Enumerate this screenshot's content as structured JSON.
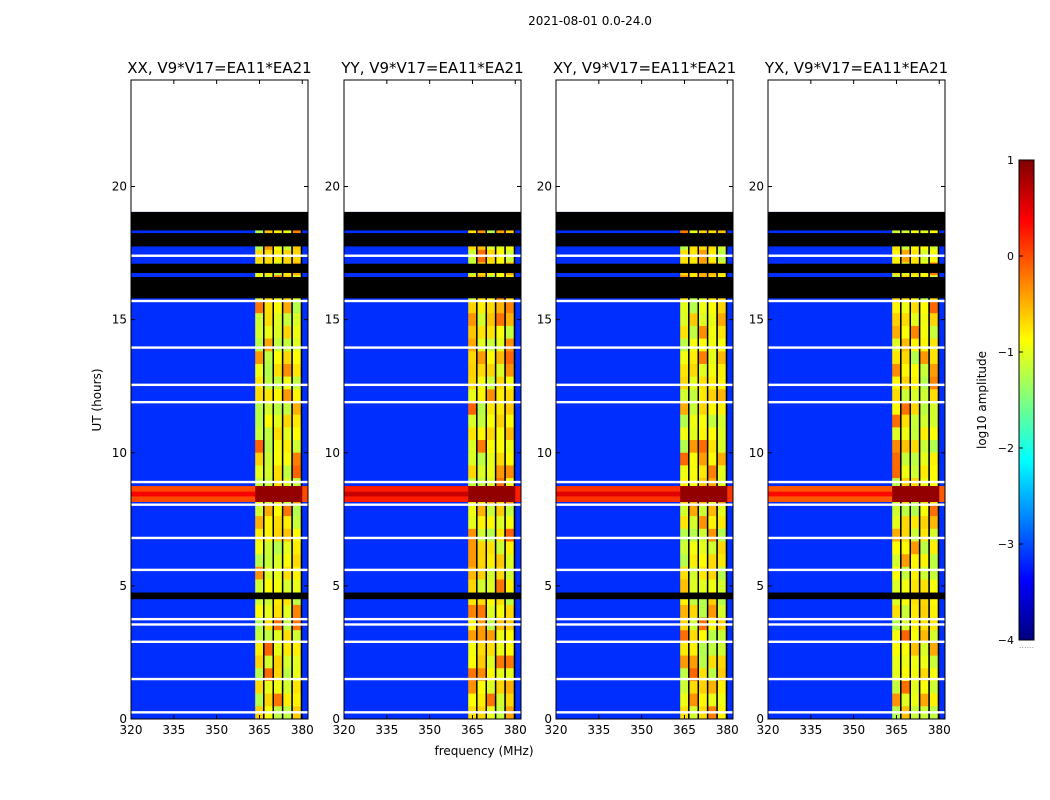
{
  "chart_data": {
    "type": "heatmap",
    "title": "2021-08-01 0.0-24.0",
    "xlabel": "frequency (MHz)",
    "ylabel": "UT (hours)",
    "xlim": [
      320,
      382
    ],
    "ylim": [
      0,
      24
    ],
    "xticks": [
      "320",
      "335",
      "350",
      "365",
      "380"
    ],
    "yticks": [
      "0",
      "5",
      "10",
      "15",
      "20"
    ],
    "panels": [
      {
        "title": "XX, V9*V17=EA11*EA21",
        "flare_strength": 0.55
      },
      {
        "title": "YY, V9*V17=EA11*EA21",
        "flare_strength": 0.85
      },
      {
        "title": "XY, V9*V17=EA11*EA21",
        "flare_strength": 0.7
      },
      {
        "title": "YX, V9*V17=EA11*EA21",
        "flare_strength": 0.45
      }
    ],
    "rfi_band_mhz": [
      363.5,
      380
    ],
    "flagged_hours": [
      [
        18.35,
        19.05
      ],
      [
        17.75,
        18.25
      ],
      [
        16.75,
        17.1
      ],
      [
        15.8,
        16.6
      ],
      [
        4.5,
        4.75
      ]
    ],
    "gap_hours": [
      [
        19.05,
        24.0
      ]
    ],
    "flare_hours": [
      8.15,
      8.75
    ],
    "colorbar": {
      "label": "log10 amplitude",
      "range": [
        -4,
        1
      ],
      "ticks": [
        "1",
        "0",
        "−1",
        "−2",
        "−3",
        "−4"
      ],
      "colormap": [
        "#00007f",
        "#0000ff",
        "#007fff",
        "#00ffff",
        "#7fff7f",
        "#ffff00",
        "#ff7f00",
        "#ff0000",
        "#7f0000"
      ]
    },
    "colorbar_footnote": "......"
  }
}
